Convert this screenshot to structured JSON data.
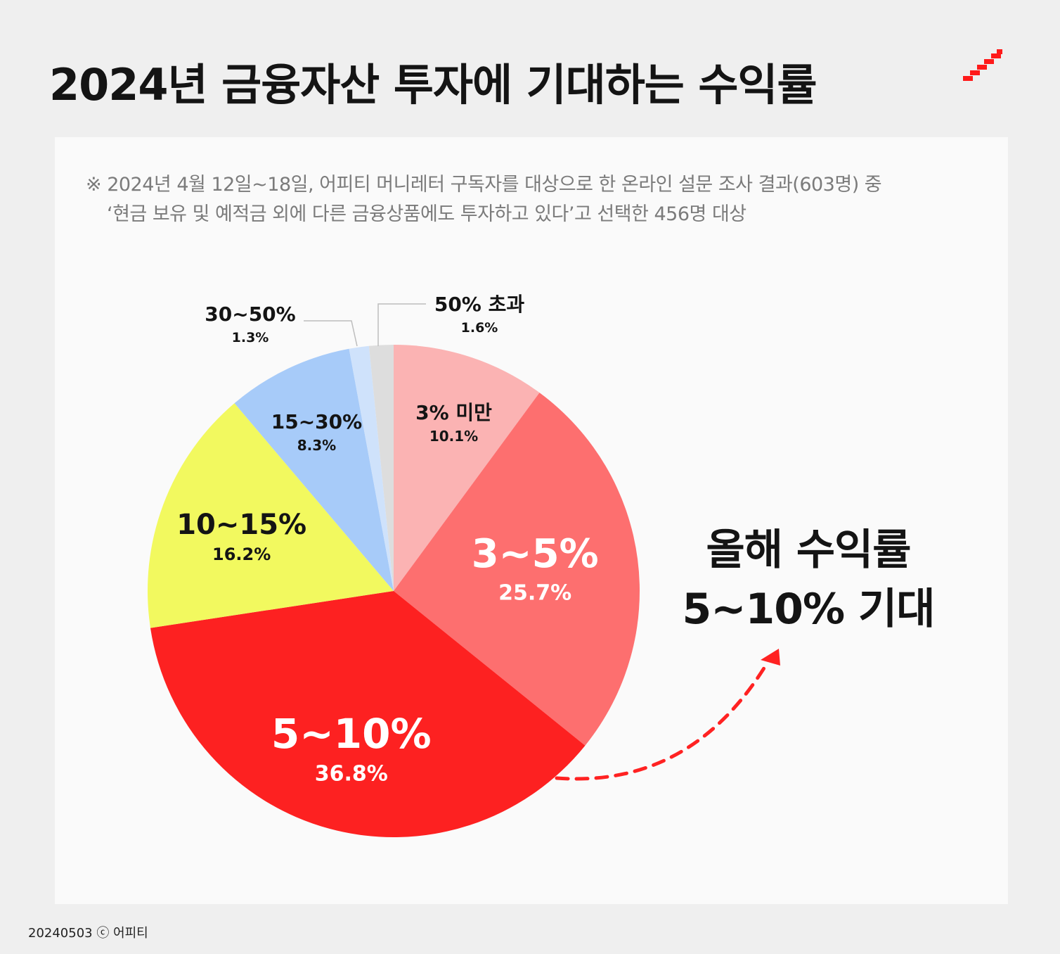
{
  "title": "2024년 금융자산 투자에 기대하는 수익률",
  "note": {
    "line1": "※ 2024년 4월 12일~18일, 어피티 머니레터 구독자를 대상으로 한 온라인 설문 조사 결과(603명) 중",
    "line2": "‘현금 보유 및 예적금 외에 다른 금융상품에도 투자하고 있다’고 선택한 456명 대상"
  },
  "callout": {
    "line1": "올해 수익률",
    "line2": "5~10% 기대"
  },
  "footer": "20240503 ⓒ 어피티",
  "colors": {
    "accent": "#ff2222",
    "logo": "#ff1a1a"
  },
  "icons": {
    "brand": "staircase-logo-icon",
    "callout_arrow": "dashed-arrow-icon"
  },
  "chart_data": {
    "type": "pie",
    "start": "12 o'clock",
    "direction": "clockwise",
    "slices": [
      {
        "label": "3% 미만",
        "value": 10.1,
        "value_label": "10.1%",
        "color": "#fbb3b3",
        "text_color": "#141414"
      },
      {
        "label": "3~5%",
        "value": 25.7,
        "value_label": "25.7%",
        "color": "#fd6f6f",
        "text_color": "#ffffff"
      },
      {
        "label": "5~10%",
        "value": 36.8,
        "value_label": "36.8%",
        "color": "#fd2121",
        "text_color": "#ffffff"
      },
      {
        "label": "10~15%",
        "value": 16.2,
        "value_label": "16.2%",
        "color": "#f2f95f",
        "text_color": "#141414"
      },
      {
        "label": "15~30%",
        "value": 8.3,
        "value_label": "8.3%",
        "color": "#a7cbf9",
        "text_color": "#141414"
      },
      {
        "label": "30~50%",
        "value": 1.3,
        "value_label": "1.3%",
        "color": "#cfe2fb",
        "text_color": "#141414"
      },
      {
        "label": "50% 초과",
        "value": 1.6,
        "value_label": "1.6%",
        "color": "#dddddd",
        "text_color": "#141414"
      }
    ]
  }
}
